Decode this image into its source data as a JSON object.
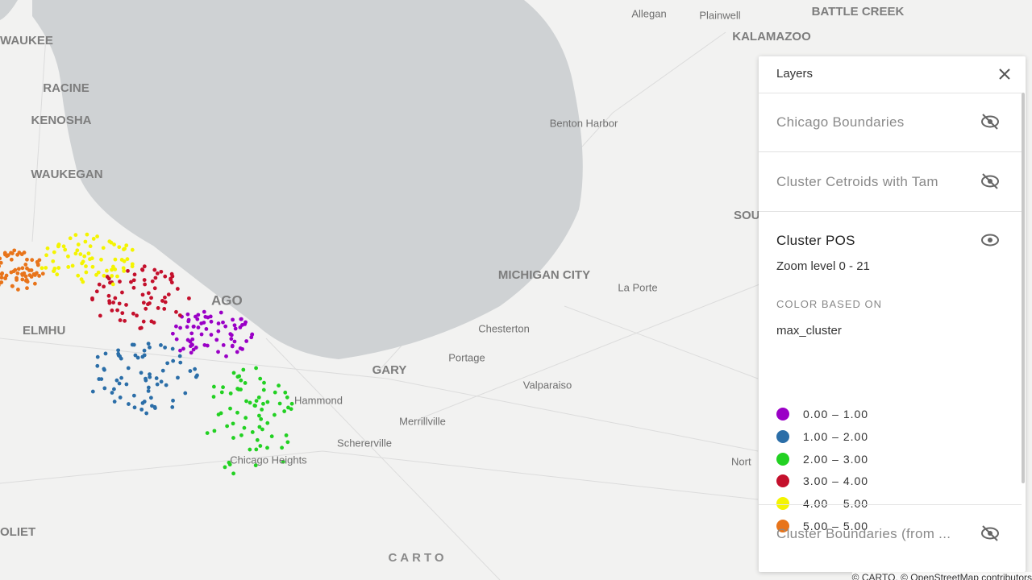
{
  "map": {
    "labels": [
      "WAUKEE",
      "RACINE",
      "KENOSHA",
      "WAUKEGAN",
      "AGO",
      "ELMHU",
      "OLIET",
      "Allegan",
      "Plainwell",
      "BATTLE CREEK",
      "KALAMAZOO",
      "Benton Harbor",
      "SOU",
      "MICHIGAN CITY",
      "La Porte",
      "Chesterton",
      "Portage",
      "GARY",
      "Valparaiso",
      "Hammond",
      "Merrillville",
      "Schererville",
      "Chicago Heights",
      "Nort"
    ],
    "logo": "CARTO",
    "attribution": "© CARTO, © OpenStreetMap contributors"
  },
  "panel": {
    "title": "Layers",
    "layers": [
      {
        "name": "Chicago Boundaries"
      },
      {
        "name": "Cluster Cetroids with Tam"
      },
      {
        "name": "Cluster POS",
        "zoom": "Zoom level 0 - 21",
        "color_based_on": "COLOR BASED ON",
        "attribute": "max_cluster",
        "legend": [
          {
            "label": "0.00 – 1.00",
            "color": "#9a00c6"
          },
          {
            "label": "1.00 – 2.00",
            "color": "#2b6ea8"
          },
          {
            "label": "2.00 – 3.00",
            "color": "#22d122"
          },
          {
            "label": "3.00 – 4.00",
            "color": "#c4102c"
          },
          {
            "label": "4.00 – 5.00",
            "color": "#f4f400"
          },
          {
            "label": "5.00 – 5.00",
            "color": "#e8741a"
          }
        ]
      },
      {
        "name": "Cluster Boundaries (from ..."
      }
    ]
  }
}
